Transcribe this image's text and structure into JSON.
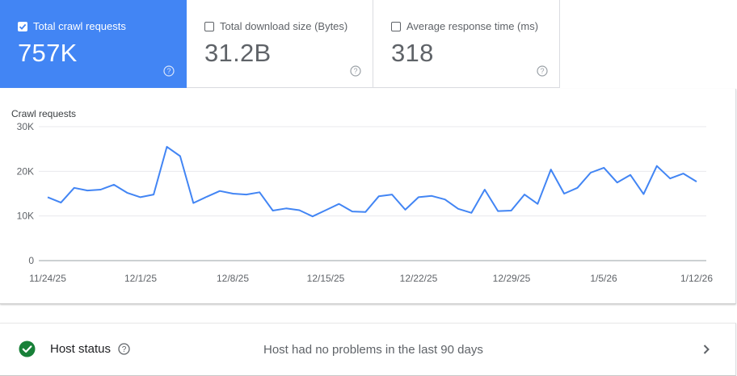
{
  "metrics": [
    {
      "label": "Total crawl requests",
      "value": "757K",
      "checked": true
    },
    {
      "label": "Total download size (Bytes)",
      "value": "31.2B",
      "checked": false
    },
    {
      "label": "Average response time (ms)",
      "value": "318",
      "checked": false
    }
  ],
  "chart_title": "Crawl requests",
  "chart_data": {
    "type": "line",
    "title": "Crawl requests",
    "ylim": [
      0,
      30000
    ],
    "y_ticks": [
      "0",
      "10K",
      "20K",
      "30K"
    ],
    "x_ticks": [
      "11/24/25",
      "12/1/25",
      "12/8/25",
      "12/15/25",
      "12/22/25",
      "12/29/25",
      "1/5/26",
      "1/12/26"
    ],
    "grid": true,
    "color": "#4285f4",
    "series": [
      {
        "values": [
          14200,
          13000,
          16300,
          15700,
          15900,
          17000,
          15200,
          14200,
          14800,
          25500,
          23400,
          12900,
          14300,
          15600,
          15000,
          14800,
          15300,
          11200,
          11700,
          11300,
          9900,
          11300,
          12700,
          11000,
          10900,
          14400,
          14800,
          11400,
          14200,
          14500,
          13700,
          11600,
          10700,
          15900,
          11100,
          11200,
          14800,
          12700,
          20400,
          15000,
          16300,
          19700,
          20800,
          17500,
          19200,
          14900,
          21200,
          18400,
          19500,
          17700
        ]
      }
    ]
  },
  "host": {
    "label": "Host status",
    "message": "Host had no problems in the last 90 days",
    "ok_color": "#188038"
  }
}
